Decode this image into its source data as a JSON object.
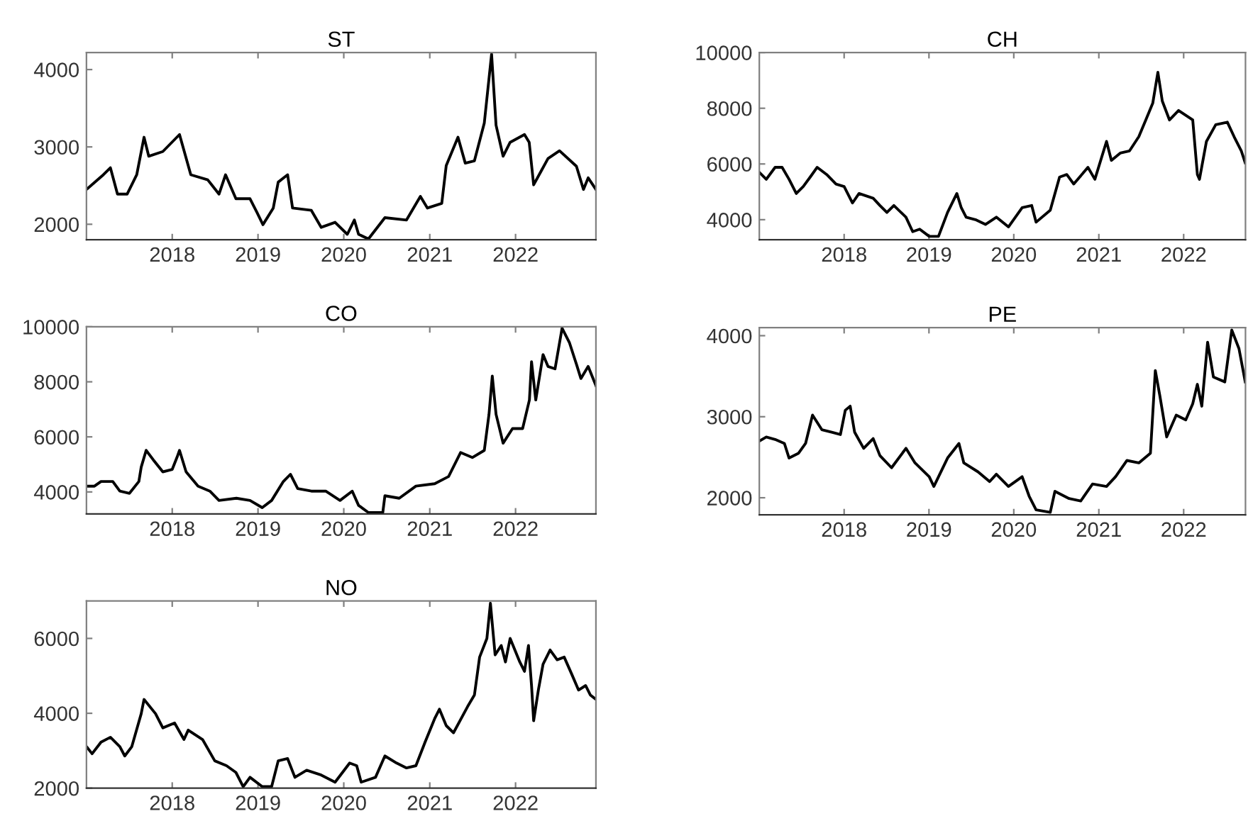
{
  "chart_data": [
    {
      "type": "line",
      "title": "ST",
      "x": [
        "2017-01-01",
        "2017-03-14",
        "2017-04-13",
        "2017-05-13",
        "2017-06-23",
        "2017-08-03",
        "2017-09-03",
        "2017-09-23",
        "2017-11-22",
        "2018-02-01",
        "2018-03-21",
        "2018-06-01",
        "2018-07-19",
        "2018-08-16",
        "2018-09-29",
        "2018-11-28",
        "2018-12-28",
        "2019-01-22",
        "2019-03-07",
        "2019-03-28",
        "2019-05-07",
        "2019-05-28",
        "2019-08-16",
        "2019-09-27",
        "2019-11-25",
        "2020-01-16",
        "2020-02-15",
        "2020-03-04",
        "2020-04-15",
        "2020-06-24",
        "2020-09-24",
        "2020-11-22",
        "2020-12-22",
        "2021-02-21",
        "2021-03-12",
        "2021-05-01",
        "2021-06-01",
        "2021-07-10",
        "2021-08-21",
        "2021-09-21",
        "2021-10-10",
        "2021-11-09",
        "2021-12-09",
        "2022-02-08",
        "2022-02-28",
        "2022-03-19",
        "2022-05-19",
        "2022-07-07",
        "2022-09-17",
        "2022-10-17",
        "2022-11-06",
        "2022-12-09"
      ],
      "series": [
        {
          "color": "#000000",
          "values": [
            2450,
            2640,
            2730,
            2390,
            2390,
            2640,
            3125,
            2880,
            2940,
            3160,
            2640,
            2575,
            2390,
            2640,
            2330,
            2330,
            2150,
            1995,
            2210,
            2545,
            2640,
            2210,
            2180,
            1960,
            2025,
            1870,
            2055,
            1870,
            1810,
            2085,
            2055,
            2360,
            2210,
            2270,
            2760,
            3125,
            2790,
            2820,
            3310,
            4200,
            3280,
            2880,
            3060,
            3160,
            3060,
            2510,
            2850,
            2950,
            2750,
            2450,
            2600,
            2450
          ]
        }
      ],
      "xlim": [
        "2017-01-01",
        "2022-12-09"
      ],
      "ylim": [
        1800,
        4220
      ],
      "xticks": [
        {
          "value": "2018-01-01",
          "label": "2018"
        },
        {
          "value": "2019-01-01",
          "label": "2019"
        },
        {
          "value": "2020-01-01",
          "label": "2020"
        },
        {
          "value": "2021-01-01",
          "label": "2021"
        },
        {
          "value": "2022-01-01",
          "label": "2022"
        }
      ],
      "yticks": [
        2000,
        3000,
        4000
      ]
    },
    {
      "type": "line",
      "title": "CH",
      "x": [
        "2017-01-01",
        "2017-01-31",
        "2017-03-10",
        "2017-04-09",
        "2017-05-09",
        "2017-06-09",
        "2017-07-09",
        "2017-08-08",
        "2017-09-07",
        "2017-10-18",
        "2017-11-27",
        "2018-01-01",
        "2018-02-06",
        "2018-03-06",
        "2018-05-06",
        "2018-06-04",
        "2018-07-04",
        "2018-08-03",
        "2018-09-24",
        "2018-10-23",
        "2018-11-22",
        "2019-01-02",
        "2019-02-11",
        "2019-03-22",
        "2019-05-01",
        "2019-05-20",
        "2019-06-10",
        "2019-07-20",
        "2019-09-01",
        "2019-10-18",
        "2019-12-09",
        "2020-02-06",
        "2020-03-18",
        "2020-04-06",
        "2020-06-06",
        "2020-07-16",
        "2020-08-16",
        "2020-09-15",
        "2020-11-15",
        "2020-12-15",
        "2021-02-03",
        "2021-02-24",
        "2021-04-03",
        "2021-05-13",
        "2021-06-22",
        "2021-07-22",
        "2021-08-21",
        "2021-09-12",
        "2021-10-01",
        "2021-11-01",
        "2021-12-10",
        "2022-02-09",
        "2022-03-01",
        "2022-03-10",
        "2022-04-09",
        "2022-05-19",
        "2022-07-08",
        "2022-08-06",
        "2022-09-06",
        "2022-09-23"
      ],
      "series": [
        {
          "color": "#000000",
          "values": [
            5700,
            5450,
            5880,
            5880,
            5450,
            4940,
            5190,
            5530,
            5880,
            5620,
            5280,
            5190,
            4600,
            4940,
            4770,
            4510,
            4260,
            4510,
            4090,
            3570,
            3660,
            3400,
            3400,
            4260,
            4940,
            4430,
            4090,
            4000,
            3830,
            4090,
            3740,
            4430,
            4510,
            3910,
            4340,
            5530,
            5620,
            5280,
            5880,
            5450,
            6810,
            6130,
            6390,
            6470,
            6980,
            7580,
            8180,
            9290,
            8260,
            7580,
            7920,
            7580,
            5620,
            5450,
            6810,
            7410,
            7500,
            6980,
            6470,
            6040
          ]
        }
      ],
      "xlim": [
        "2017-01-01",
        "2022-09-24"
      ],
      "ylim": [
        3280,
        10000
      ],
      "xticks": [
        {
          "value": "2018-01-01",
          "label": "2018"
        },
        {
          "value": "2019-01-01",
          "label": "2019"
        },
        {
          "value": "2020-01-01",
          "label": "2020"
        },
        {
          "value": "2021-01-01",
          "label": "2021"
        },
        {
          "value": "2022-01-01",
          "label": "2022"
        }
      ],
      "yticks": [
        4000,
        6000,
        8000,
        10000
      ]
    },
    {
      "type": "line",
      "title": "CO",
      "x": [
        "2017-01-01",
        "2017-02-04",
        "2017-03-04",
        "2017-04-23",
        "2017-05-23",
        "2017-07-03",
        "2017-08-12",
        "2017-08-22",
        "2017-09-12",
        "2017-10-12",
        "2017-11-22",
        "2018-01-01",
        "2018-01-21",
        "2018-02-01",
        "2018-03-01",
        "2018-04-21",
        "2018-06-10",
        "2018-07-19",
        "2018-10-01",
        "2018-11-28",
        "2019-01-19",
        "2019-02-28",
        "2019-04-19",
        "2019-05-19",
        "2019-06-19",
        "2019-08-16",
        "2019-10-16",
        "2019-12-16",
        "2020-02-06",
        "2020-03-04",
        "2020-04-15",
        "2020-06-15",
        "2020-06-24",
        "2020-08-24",
        "2020-11-03",
        "2021-01-22",
        "2021-03-22",
        "2021-05-12",
        "2021-07-01",
        "2021-08-21",
        "2021-09-10",
        "2021-09-24",
        "2021-10-10",
        "2021-11-09",
        "2021-12-19",
        "2022-01-31",
        "2022-03-01",
        "2022-03-10",
        "2022-03-28",
        "2022-04-28",
        "2022-05-19",
        "2022-06-18",
        "2022-07-18",
        "2022-08-18",
        "2022-09-17",
        "2022-10-06",
        "2022-11-06",
        "2022-12-09"
      ],
      "series": [
        {
          "color": "#000000",
          "values": [
            4210,
            4210,
            4380,
            4380,
            4030,
            3950,
            4380,
            4900,
            5510,
            5170,
            4730,
            4820,
            5250,
            5510,
            4730,
            4210,
            4030,
            3690,
            3770,
            3690,
            3430,
            3690,
            4380,
            4640,
            4120,
            4030,
            4030,
            3690,
            4030,
            3510,
            3250,
            3250,
            3860,
            3770,
            4210,
            4300,
            4560,
            5430,
            5250,
            5510,
            6820,
            8210,
            6820,
            5770,
            6300,
            6300,
            7340,
            8730,
            7340,
            8990,
            8560,
            8470,
            9950,
            9430,
            8640,
            8120,
            8560,
            7860
          ]
        }
      ],
      "xlim": [
        "2017-01-01",
        "2022-12-09"
      ],
      "ylim": [
        3200,
        10000
      ],
      "xticks": [
        {
          "value": "2018-01-01",
          "label": "2018"
        },
        {
          "value": "2019-01-01",
          "label": "2019"
        },
        {
          "value": "2020-01-01",
          "label": "2020"
        },
        {
          "value": "2021-01-01",
          "label": "2021"
        },
        {
          "value": "2022-01-01",
          "label": "2022"
        }
      ],
      "yticks": [
        4000,
        6000,
        8000,
        10000
      ]
    },
    {
      "type": "line",
      "title": "PE",
      "x": [
        "2017-01-01",
        "2017-01-31",
        "2017-03-10",
        "2017-04-19",
        "2017-05-09",
        "2017-06-19",
        "2017-07-19",
        "2017-08-18",
        "2017-09-27",
        "2017-11-06",
        "2017-12-16",
        "2018-01-06",
        "2018-01-27",
        "2018-02-15",
        "2018-03-26",
        "2018-05-06",
        "2018-06-04",
        "2018-07-24",
        "2018-09-24",
        "2018-11-02",
        "2019-01-02",
        "2019-01-22",
        "2019-03-22",
        "2019-05-10",
        "2019-05-31",
        "2019-07-31",
        "2019-09-19",
        "2019-10-18",
        "2019-12-09",
        "2020-02-06",
        "2020-03-07",
        "2020-04-06",
        "2020-06-06",
        "2020-06-26",
        "2020-08-26",
        "2020-10-15",
        "2020-12-05",
        "2021-02-03",
        "2021-03-14",
        "2021-05-02",
        "2021-06-22",
        "2021-08-11",
        "2021-09-01",
        "2021-09-21",
        "2021-10-20",
        "2021-11-30",
        "2022-01-10",
        "2022-02-09",
        "2022-03-01",
        "2022-03-20",
        "2022-04-14",
        "2022-05-09",
        "2022-06-27",
        "2022-07-27",
        "2022-08-27",
        "2022-09-23"
      ],
      "series": [
        {
          "color": "#000000",
          "values": [
            2700,
            2750,
            2720,
            2670,
            2490,
            2550,
            2670,
            3020,
            2840,
            2810,
            2780,
            3080,
            3130,
            2810,
            2610,
            2730,
            2520,
            2370,
            2610,
            2430,
            2260,
            2140,
            2490,
            2670,
            2430,
            2320,
            2200,
            2290,
            2140,
            2260,
            2020,
            1850,
            1820,
            2080,
            1990,
            1960,
            2170,
            2140,
            2260,
            2460,
            2430,
            2550,
            3570,
            3250,
            2750,
            3020,
            2960,
            3160,
            3400,
            3130,
            3920,
            3490,
            3430,
            4070,
            3840,
            3430
          ]
        }
      ],
      "xlim": [
        "2017-01-01",
        "2022-09-24"
      ],
      "ylim": [
        1790,
        4100
      ],
      "xticks": [
        {
          "value": "2018-01-01",
          "label": "2018"
        },
        {
          "value": "2019-01-01",
          "label": "2019"
        },
        {
          "value": "2020-01-01",
          "label": "2020"
        },
        {
          "value": "2021-01-01",
          "label": "2021"
        },
        {
          "value": "2022-01-01",
          "label": "2022"
        }
      ],
      "yticks": [
        2000,
        3000,
        4000
      ]
    },
    {
      "type": "line",
      "title": "NO",
      "x": [
        "2017-01-01",
        "2017-01-25",
        "2017-03-04",
        "2017-04-13",
        "2017-05-23",
        "2017-06-13",
        "2017-07-13",
        "2017-08-22",
        "2017-09-03",
        "2017-10-22",
        "2017-11-22",
        "2018-01-11",
        "2018-02-20",
        "2018-03-10",
        "2018-05-10",
        "2018-07-01",
        "2018-08-20",
        "2018-09-29",
        "2018-10-30",
        "2018-11-28",
        "2019-01-19",
        "2019-02-28",
        "2019-03-28",
        "2019-05-07",
        "2019-06-07",
        "2019-07-27",
        "2019-09-27",
        "2019-11-25",
        "2020-01-26",
        "2020-02-25",
        "2020-03-15",
        "2020-05-15",
        "2020-06-24",
        "2020-08-13",
        "2020-09-24",
        "2020-11-03",
        "2020-12-12",
        "2021-01-22",
        "2021-02-11",
        "2021-03-12",
        "2021-04-12",
        "2021-06-11",
        "2021-07-10",
        "2021-08-01",
        "2021-09-01",
        "2021-09-16",
        "2021-10-06",
        "2021-11-01",
        "2021-11-19",
        "2021-12-09",
        "2022-01-19",
        "2022-02-08",
        "2022-02-25",
        "2022-03-10",
        "2022-03-19",
        "2022-04-08",
        "2022-04-28",
        "2022-05-28",
        "2022-06-27",
        "2022-07-27",
        "2022-08-27",
        "2022-09-26",
        "2022-10-26",
        "2022-11-15",
        "2022-12-09"
      ],
      "series": [
        {
          "color": "#000000",
          "values": [
            3110,
            2920,
            3230,
            3360,
            3110,
            2860,
            3110,
            3990,
            4370,
            3990,
            3610,
            3740,
            3300,
            3550,
            3300,
            2730,
            2600,
            2420,
            2040,
            2290,
            2040,
            2040,
            2730,
            2790,
            2290,
            2480,
            2350,
            2160,
            2670,
            2600,
            2160,
            2290,
            2860,
            2670,
            2540,
            2600,
            3230,
            3860,
            4110,
            3670,
            3480,
            4180,
            4490,
            5500,
            6000,
            6940,
            5560,
            5810,
            5370,
            6000,
            5370,
            5120,
            5810,
            4740,
            3800,
            4620,
            5310,
            5690,
            5430,
            5500,
            5060,
            4620,
            4740,
            4490,
            4370
          ]
        }
      ],
      "xlim": [
        "2017-01-01",
        "2022-12-09"
      ],
      "ylim": [
        2000,
        7000
      ],
      "xticks": [
        {
          "value": "2018-01-01",
          "label": "2018"
        },
        {
          "value": "2019-01-01",
          "label": "2019"
        },
        {
          "value": "2020-01-01",
          "label": "2020"
        },
        {
          "value": "2021-01-01",
          "label": "2021"
        },
        {
          "value": "2022-01-01",
          "label": "2022"
        }
      ],
      "yticks": [
        2000,
        4000,
        6000
      ]
    }
  ]
}
